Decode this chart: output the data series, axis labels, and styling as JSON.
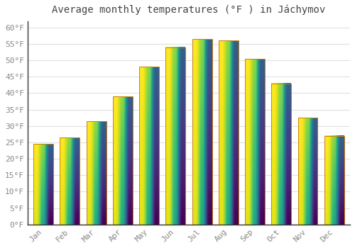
{
  "title": "Average monthly temperatures (°F ) in Jáchymov",
  "months": [
    "Jan",
    "Feb",
    "Mar",
    "Apr",
    "May",
    "Jun",
    "Jul",
    "Aug",
    "Sep",
    "Oct",
    "Nov",
    "Dec"
  ],
  "values": [
    24.5,
    26.5,
    31.5,
    39.0,
    48.0,
    54.0,
    56.5,
    56.0,
    50.5,
    43.0,
    32.5,
    27.0
  ],
  "bar_color_bottom": "#F5A623",
  "bar_color_top": "#FFD966",
  "bar_edge_color": "#C8810A",
  "background_color": "#FFFFFF",
  "grid_color": "#E0E0E0",
  "text_color": "#888888",
  "ylim": [
    0,
    62
  ],
  "yticks": [
    0,
    5,
    10,
    15,
    20,
    25,
    30,
    35,
    40,
    45,
    50,
    55,
    60
  ],
  "ytick_labels": [
    "0°F",
    "5°F",
    "10°F",
    "15°F",
    "20°F",
    "25°F",
    "30°F",
    "35°F",
    "40°F",
    "45°F",
    "50°F",
    "55°F",
    "60°F"
  ],
  "title_fontsize": 10,
  "tick_fontsize": 8,
  "bar_width": 0.75
}
